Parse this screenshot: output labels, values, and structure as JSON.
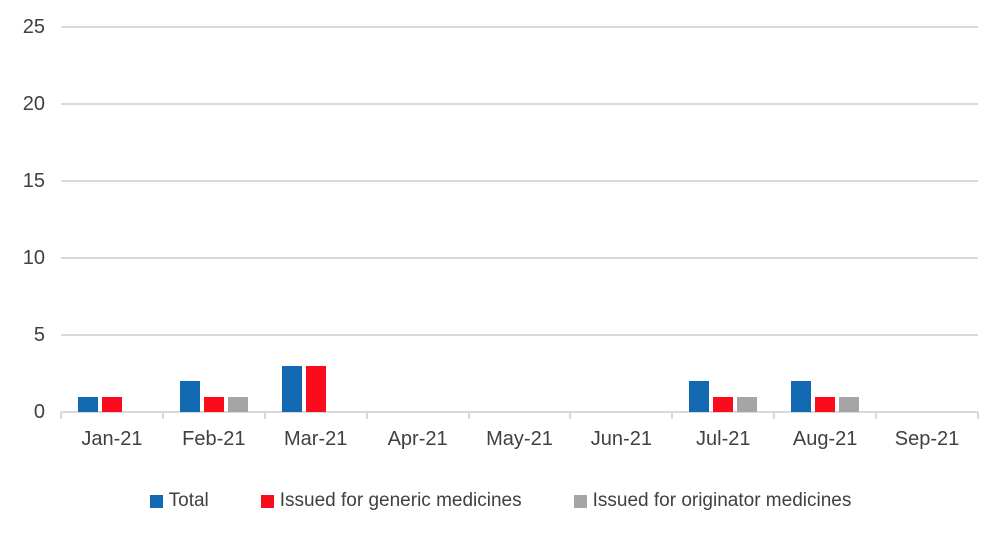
{
  "chart_data": {
    "type": "bar",
    "title": "",
    "categories": [
      "Jan-21",
      "Feb-21",
      "Mar-21",
      "Apr-21",
      "May-21",
      "Jun-21",
      "Jul-21",
      "Aug-21",
      "Sep-21"
    ],
    "series": [
      {
        "name": "Total",
        "color": "#1268b1",
        "values": [
          1,
          2,
          3,
          0,
          0,
          0,
          2,
          2,
          0
        ]
      },
      {
        "name": "Issued for generic medicines",
        "color": "#fb0c1d",
        "values": [
          1,
          1,
          3,
          0,
          0,
          0,
          1,
          1,
          0
        ]
      },
      {
        "name": "Issued for originator medicines",
        "color": "#a5a5a5",
        "values": [
          0,
          1,
          0,
          0,
          0,
          0,
          1,
          1,
          0
        ]
      }
    ],
    "y_axis": {
      "min": 0,
      "max": 25,
      "step": 5,
      "tick_labels": [
        "0",
        "5",
        "10",
        "15",
        "20",
        "25"
      ]
    },
    "x_axis_label": "",
    "y_axis_label": "",
    "grid": true,
    "legend_position": "bottom",
    "style": {
      "gridline_color": "#d9d9d9",
      "axis_text_color": "#404040",
      "background_color": "#ffffff"
    }
  }
}
